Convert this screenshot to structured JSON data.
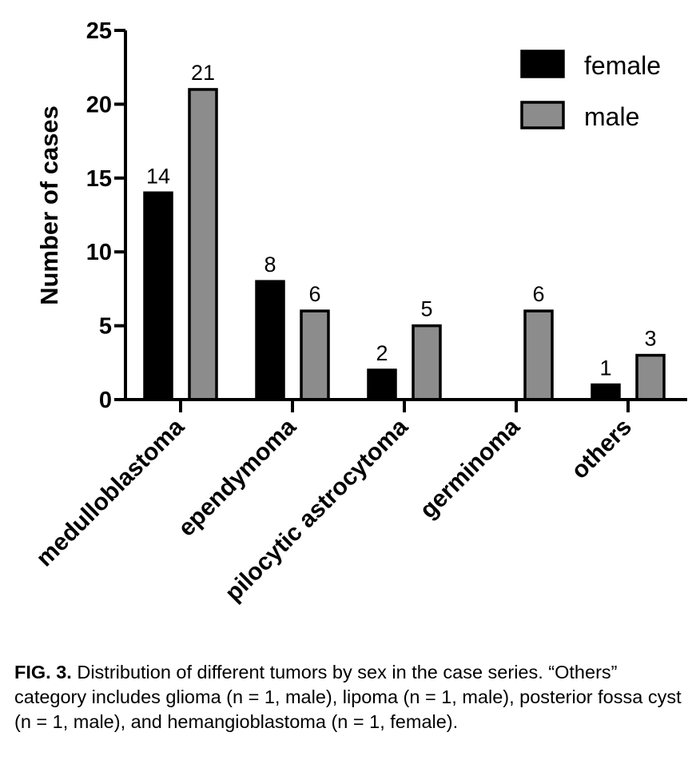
{
  "chart_data": {
    "type": "bar",
    "title": "",
    "xlabel": "",
    "ylabel": "Number of cases",
    "categories": [
      "medulloblastoma",
      "ependymoma",
      "pilocytic astrocytoma",
      "germinoma",
      "others"
    ],
    "series": [
      {
        "name": "female",
        "values": [
          14,
          8,
          2,
          0,
          1
        ],
        "color": "#000000"
      },
      {
        "name": "male",
        "values": [
          21,
          6,
          5,
          6,
          3
        ],
        "color": "#8c8c8c"
      }
    ],
    "data_labels": [
      [
        "14",
        "8",
        "2",
        "",
        "1"
      ],
      [
        "21",
        "6",
        "5",
        "6",
        "3"
      ]
    ],
    "ylim": [
      0,
      25
    ],
    "yticks": [
      "0",
      "5",
      "10",
      "15",
      "20",
      "25"
    ],
    "legend_position": "top-right",
    "grid": false
  },
  "caption": {
    "lead": "FIG. 3.",
    "text": " Distribution of different tumors by sex in the case series. “Others” category includes glioma (n = 1, male), lipoma (n = 1, male), posterior fossa cyst (n = 1, male), and hemangioblastoma (n = 1, female)."
  }
}
